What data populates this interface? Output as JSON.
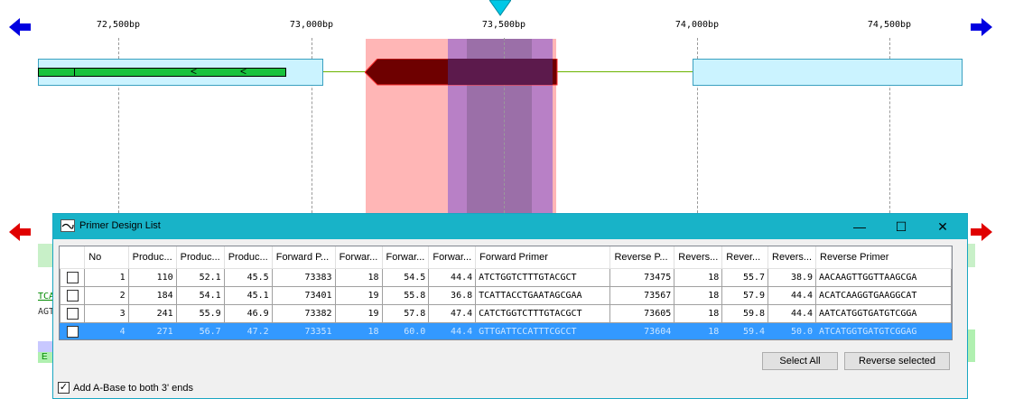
{
  "ruler": {
    "labels": [
      "72,500bp",
      "73,000bp",
      "73,500bp",
      "74,000bp",
      "74,500bp"
    ]
  },
  "colors": {
    "nav_left": "#0000e0",
    "nav_right": "#e00000",
    "position_marker": "#00c8e6",
    "gene_box": "#cbf3ff",
    "green_feature": "#18c23c",
    "dark_feature": "#6e0000",
    "pink_region": "#ffb6b6",
    "purple_region": "#a86cc8",
    "accent": "#18b3c8",
    "selection": "#3399ff"
  },
  "feature_glyphs": {
    "arrow1": "<",
    "arrow2": "<"
  },
  "side_fragments": {
    "row1": "TCA",
    "row2": "AGT",
    "row3": "E"
  },
  "dialog": {
    "title": "Primer Design List",
    "minimize_glyph": "—",
    "maximize_glyph": "☐",
    "close_glyph": "✕",
    "columns": [
      "",
      "No",
      "Produc...",
      "Produc...",
      "Produc...",
      "Forward P...",
      "Forwar...",
      "Forwar...",
      "Forwar...",
      "Forward Primer",
      "Reverse P...",
      "Revers...",
      "Rever...",
      "Revers...",
      "Reverse Primer"
    ],
    "rows": [
      [
        "",
        "1",
        "110",
        "52.1",
        "45.5",
        "73383",
        "18",
        "54.5",
        "44.4",
        "ATCTGGTCTTTGTACGCT",
        "73475",
        "18",
        "55.7",
        "38.9",
        "AACAAGTTGGTTAAGCGA"
      ],
      [
        "",
        "2",
        "184",
        "54.1",
        "45.1",
        "73401",
        "19",
        "55.8",
        "36.8",
        "TCATTACCTGAATAGCGAA",
        "73567",
        "18",
        "57.9",
        "44.4",
        "ACATCAAGGTGAAGGCAT"
      ],
      [
        "",
        "3",
        "241",
        "55.9",
        "46.9",
        "73382",
        "19",
        "57.8",
        "47.4",
        "CATCTGGTCTTTGTACGCT",
        "73605",
        "18",
        "59.8",
        "44.4",
        "AATCATGGTGATGTCGGA"
      ],
      [
        "",
        "4",
        "271",
        "56.7",
        "47.2",
        "73351",
        "18",
        "60.0",
        "44.4",
        "GTTGATTCCATTTCGCCT",
        "73604",
        "18",
        "59.4",
        "50.0",
        "ATCATGGTGATGTCGGAG"
      ]
    ],
    "selected_row": 4,
    "buttons": {
      "select_all": "Select All",
      "reverse_selected": "Reverse selected"
    },
    "checkbox": {
      "label": "Add A-Base to both 3' ends",
      "checked": true,
      "glyph": "✓"
    }
  }
}
